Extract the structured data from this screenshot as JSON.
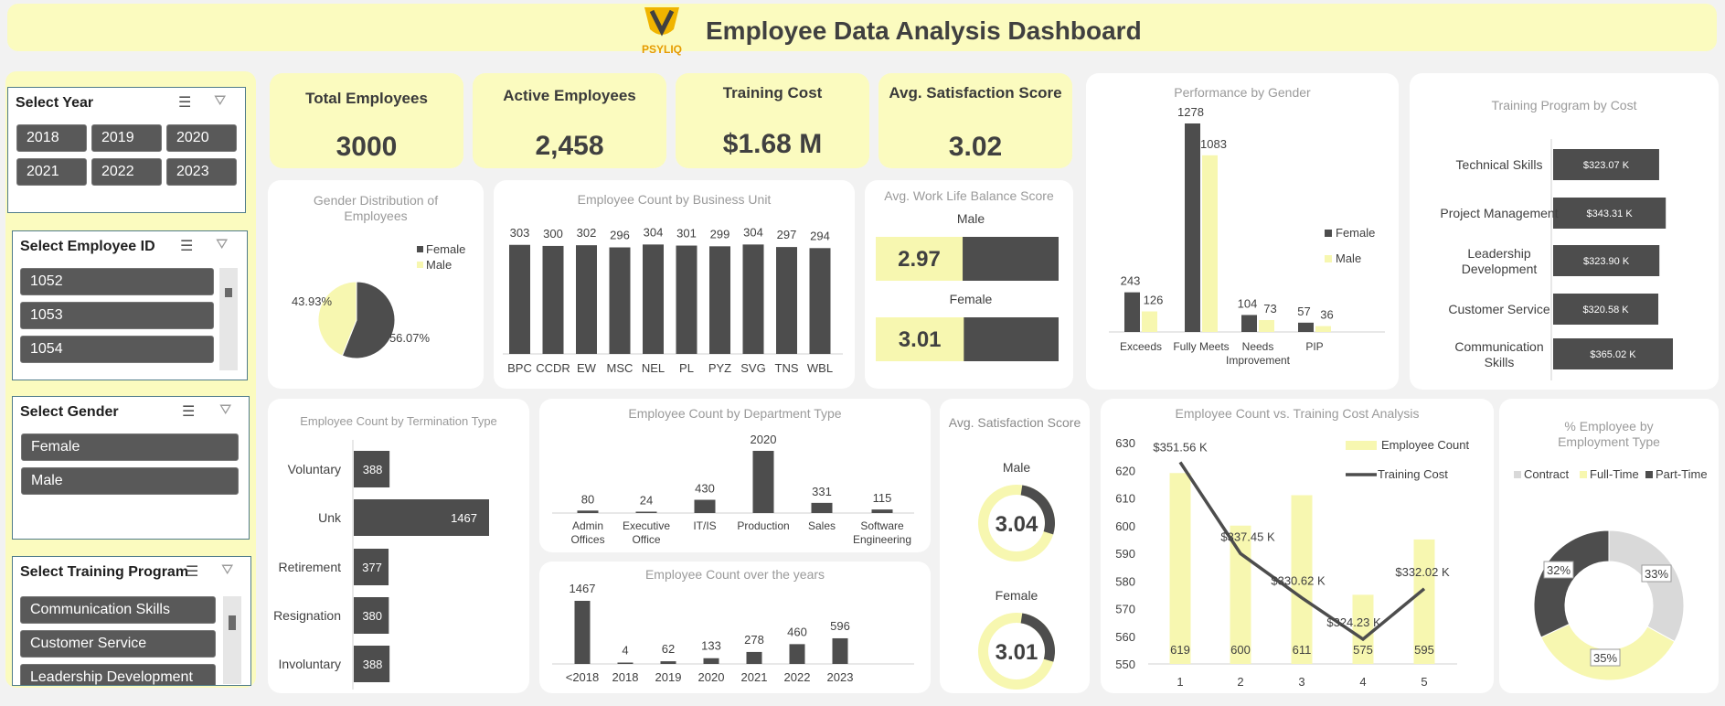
{
  "header": {
    "title": "Employee Data Analysis Dashboard",
    "logo_text": "PSYLIQ",
    "bg_color": "#fbfbbf"
  },
  "slicers": {
    "year": {
      "title": "Select Year",
      "items": [
        "2018",
        "2019",
        "2020",
        "2021",
        "2022",
        "2023"
      ]
    },
    "employee_id": {
      "title": "Select Employee ID",
      "items": [
        "1052",
        "1053",
        "1054"
      ]
    },
    "gender": {
      "title": "Select Gender",
      "items": [
        "Female",
        "Male"
      ]
    },
    "training_program": {
      "title": "Select Training Program",
      "items": [
        "Communication Skills",
        "Customer Service",
        "Leadership Development"
      ]
    }
  },
  "kpis": [
    {
      "title": "Total Employees",
      "value": "3000"
    },
    {
      "title": "Active Employees",
      "value": "2,458"
    },
    {
      "title": "Training Cost",
      "value": "$1.68 M"
    },
    {
      "title": "Avg. Satisfaction Score",
      "value": "3.02"
    }
  ],
  "colors": {
    "dark": "#4d4d4d",
    "yellow": "#fbfbbf",
    "light_gray": "#d9d9d9",
    "title_gray": "#9a9a9a"
  },
  "chart_data": [
    {
      "id": "gender_distribution",
      "type": "pie",
      "title": "Gender Distribution of Employees",
      "legend": [
        "Female",
        "Male"
      ],
      "slices": [
        {
          "name": "Female",
          "value": 56.07,
          "label": "56.07%"
        },
        {
          "name": "Male",
          "value": 43.93,
          "label": "43.93%"
        }
      ]
    },
    {
      "id": "business_unit",
      "type": "bar",
      "title": "Employee Count by Business Unit",
      "categories": [
        "BPC",
        "CCDR",
        "EW",
        "MSC",
        "NEL",
        "PL",
        "PYZ",
        "SVG",
        "TNS",
        "WBL"
      ],
      "values": [
        303,
        300,
        302,
        296,
        304,
        301,
        299,
        304,
        297,
        294
      ]
    },
    {
      "id": "work_life_balance",
      "type": "bar",
      "title": "Avg. Work Life Balance Score",
      "categories": [
        "Male",
        "Female"
      ],
      "values": [
        2.97,
        3.01
      ],
      "labels": [
        "2.97",
        "3.01"
      ],
      "max": 5
    },
    {
      "id": "performance_by_gender",
      "type": "bar",
      "title": "Performance by Gender",
      "categories": [
        "Exceeds",
        "Fully Meets",
        "Needs Improvement",
        "PIP"
      ],
      "series": [
        {
          "name": "Female",
          "values": [
            243,
            1278,
            104,
            57
          ]
        },
        {
          "name": "Male",
          "values": [
            126,
            1083,
            73,
            36
          ]
        }
      ]
    },
    {
      "id": "training_program_cost",
      "type": "bar",
      "title": "Training Program by Cost",
      "categories": [
        "Technical Skills",
        "Project Management",
        "Leadership Development",
        "Customer Service",
        "Communication Skills"
      ],
      "values": [
        323.07,
        343.31,
        323.9,
        320.58,
        365.02
      ],
      "labels": [
        "$323.07 K",
        "$343.31 K",
        "$323.90 K",
        "$320.58 K",
        "$365.02 K"
      ]
    },
    {
      "id": "termination_type",
      "type": "bar",
      "title": "Employee Count by Termination Type",
      "categories": [
        "Voluntary",
        "Unk",
        "Retirement",
        "Resignation",
        "Involuntary"
      ],
      "values": [
        388,
        1467,
        377,
        380,
        388
      ]
    },
    {
      "id": "department_type",
      "type": "bar",
      "title": "Employee Count by Department Type",
      "categories": [
        "Admin Offices",
        "Executive Office",
        "IT/IS",
        "Production",
        "Sales",
        "Software Engineering"
      ],
      "values": [
        80,
        24,
        430,
        2020,
        331,
        115
      ]
    },
    {
      "id": "count_over_years",
      "type": "bar",
      "title": "Employee Count over the years",
      "categories": [
        "<2018",
        "2018",
        "2019",
        "2020",
        "2021",
        "2022",
        "2023"
      ],
      "values": [
        1467,
        4,
        62,
        133,
        278,
        460,
        596
      ]
    },
    {
      "id": "avg_satisfaction",
      "type": "pie",
      "title": "Avg. Satisfaction Score",
      "categories": [
        "Male",
        "Female"
      ],
      "values": [
        3.04,
        3.01
      ],
      "labels": [
        "3.04",
        "3.01"
      ],
      "max": 5
    },
    {
      "id": "count_vs_cost",
      "type": "bar",
      "title": "Employee Count vs. Training Cost Analysis",
      "legend": [
        "Employee Count",
        "Training Cost"
      ],
      "x": [
        "1",
        "2",
        "3",
        "4",
        "5"
      ],
      "series": [
        {
          "name": "Employee Count",
          "values": [
            619,
            600,
            611,
            575,
            595
          ],
          "labels": [
            "619",
            "600",
            "611",
            "575",
            "595"
          ]
        },
        {
          "name": "Training Cost",
          "values": [
            351.56,
            337.45,
            330.62,
            324.23,
            332.02
          ],
          "labels": [
            "$351.56 K",
            "$337.45 K",
            "$330.62 K",
            "$324.23 K",
            "$332.02 K"
          ]
        }
      ],
      "y_ticks": [
        "630",
        "620",
        "610",
        "600",
        "590",
        "580",
        "570",
        "560",
        "550"
      ],
      "ylim": [
        550,
        630
      ]
    },
    {
      "id": "employment_type",
      "type": "pie",
      "title": "% Employee by Employment Type",
      "legend": [
        "Contract",
        "Full-Time",
        "Part-Time"
      ],
      "slices": [
        {
          "name": "Contract",
          "value": 33,
          "label": "33%"
        },
        {
          "name": "Full-Time",
          "value": 35,
          "label": "35%"
        },
        {
          "name": "Part-Time",
          "value": 32,
          "label": "32%"
        }
      ]
    }
  ]
}
